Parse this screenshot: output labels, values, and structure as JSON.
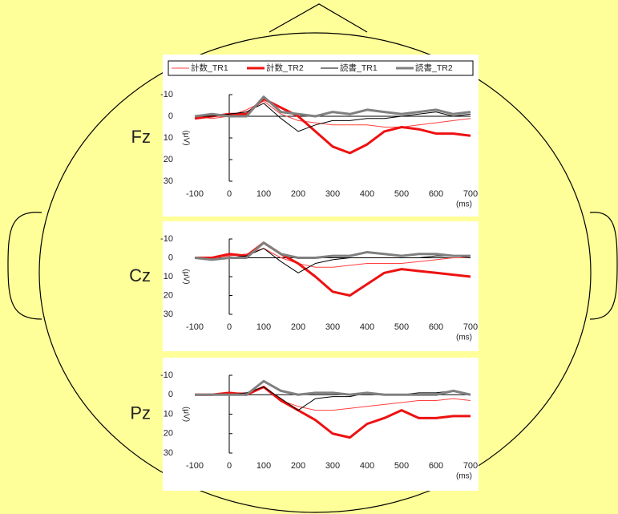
{
  "chart_data": [
    {
      "type": "line",
      "title": "Fz",
      "y_label": "(μV)",
      "x_label": "(ms)",
      "y_inverted": true,
      "legend": true,
      "legend_position": "top",
      "x": [
        -100,
        -50,
        0,
        50,
        100,
        150,
        200,
        250,
        300,
        350,
        400,
        450,
        500,
        550,
        600,
        650,
        700
      ],
      "xlim": [
        -100,
        700
      ],
      "xticks": [
        -100,
        0,
        100,
        200,
        300,
        400,
        500,
        600,
        700
      ],
      "ylim": [
        -10,
        30
      ],
      "yticks": [
        -10,
        0,
        10,
        20,
        30
      ],
      "series": [
        {
          "name": "計数_TR1",
          "color": "#ff4040",
          "line_width": 1,
          "values": [
            0,
            1,
            0,
            -3,
            -7,
            -1,
            2,
            3,
            4,
            4,
            4,
            5,
            5,
            4,
            3,
            2,
            1
          ]
        },
        {
          "name": "計数_TR2",
          "color": "#ee1111",
          "line_width": 3,
          "values": [
            1,
            0,
            -1,
            -1,
            -8,
            -4,
            0,
            7,
            14,
            17,
            13,
            7,
            5,
            6,
            8,
            8,
            9
          ]
        },
        {
          "name": "読書_TR1",
          "color": "#000000",
          "line_width": 1,
          "values": [
            0,
            0,
            -1,
            -2,
            -6,
            1,
            7,
            4,
            2,
            2,
            1,
            1,
            0,
            -1,
            -2,
            0,
            -1
          ]
        },
        {
          "name": "読書_TR2",
          "color": "#808080",
          "line_width": 3,
          "values": [
            0,
            -1,
            0,
            0,
            -9,
            -2,
            -1,
            0,
            -2,
            -1,
            -3,
            -2,
            -1,
            -2,
            -3,
            -1,
            -2
          ]
        }
      ]
    },
    {
      "type": "line",
      "title": "Cz",
      "y_label": "(μV)",
      "x_label": "(ms)",
      "y_inverted": true,
      "legend": false,
      "x": [
        -100,
        -50,
        0,
        50,
        100,
        150,
        200,
        250,
        300,
        350,
        400,
        450,
        500,
        550,
        600,
        650,
        700
      ],
      "xlim": [
        -100,
        700
      ],
      "xticks": [
        -100,
        0,
        100,
        200,
        300,
        400,
        500,
        600,
        700
      ],
      "ylim": [
        -10,
        30
      ],
      "yticks": [
        -10,
        0,
        10,
        20,
        30
      ],
      "series": [
        {
          "color": "#ff4040",
          "line_width": 1,
          "values": [
            0,
            0,
            -1,
            -2,
            -5,
            0,
            3,
            5,
            5,
            4,
            3,
            3,
            3,
            2,
            1,
            0,
            0
          ]
        },
        {
          "color": "#ee1111",
          "line_width": 3,
          "values": [
            0,
            0,
            -2,
            -1,
            -8,
            -2,
            3,
            10,
            18,
            20,
            14,
            8,
            6,
            7,
            8,
            9,
            10
          ]
        },
        {
          "color": "#000000",
          "line_width": 1,
          "values": [
            0,
            1,
            0,
            -1,
            -5,
            2,
            8,
            3,
            1,
            0,
            0,
            0,
            0,
            0,
            -1,
            -1,
            0
          ]
        },
        {
          "color": "#808080",
          "line_width": 3,
          "values": [
            0,
            1,
            0,
            0,
            -8,
            -2,
            0,
            0,
            -1,
            -1,
            -3,
            -2,
            -1,
            -2,
            -2,
            -1,
            -1
          ]
        }
      ]
    },
    {
      "type": "line",
      "title": "Pz",
      "y_label": "(μV)",
      "x_label": "(ms)",
      "y_inverted": true,
      "legend": false,
      "x": [
        -100,
        -50,
        0,
        50,
        100,
        150,
        200,
        250,
        300,
        350,
        400,
        450,
        500,
        550,
        600,
        650,
        700
      ],
      "xlim": [
        -100,
        700
      ],
      "xticks": [
        -100,
        0,
        100,
        200,
        300,
        400,
        500,
        600,
        700
      ],
      "ylim": [
        -10,
        30
      ],
      "yticks": [
        -10,
        0,
        10,
        20,
        30
      ],
      "series": [
        {
          "color": "#ff4040",
          "line_width": 1,
          "values": [
            0,
            0,
            -1,
            -1,
            -4,
            3,
            6,
            8,
            8,
            7,
            6,
            5,
            4,
            3,
            3,
            2,
            3
          ]
        },
        {
          "color": "#ee1111",
          "line_width": 3,
          "values": [
            0,
            0,
            -1,
            0,
            -4,
            3,
            8,
            13,
            20,
            22,
            15,
            12,
            8,
            12,
            12,
            11,
            11
          ]
        },
        {
          "color": "#000000",
          "line_width": 1,
          "values": [
            0,
            0,
            0,
            -1,
            -4,
            2,
            8,
            2,
            1,
            1,
            -1,
            0,
            0,
            -1,
            -1,
            -2,
            0
          ]
        },
        {
          "color": "#808080",
          "line_width": 3,
          "values": [
            0,
            0,
            0,
            0,
            -7,
            -2,
            0,
            -1,
            -1,
            0,
            -1,
            0,
            0,
            0,
            0,
            -2,
            0
          ]
        }
      ]
    }
  ]
}
